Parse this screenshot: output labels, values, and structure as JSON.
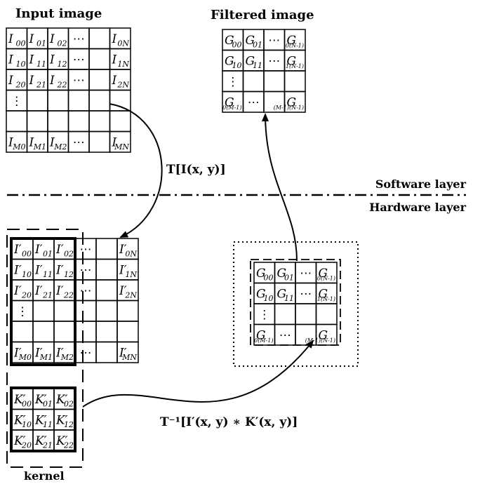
{
  "titles": {
    "input": "Input image",
    "filtered": "Filtered image"
  },
  "layers": {
    "software": "Software layer",
    "hardware": "Hardware layer"
  },
  "kernel_label": "kernel",
  "formulas": {
    "forward": "T[I(x, y)]",
    "inverse": "T⁻¹[I′(x, y) ∗ K′(x, y)]"
  },
  "input_grid": {
    "base": "I",
    "rows": [
      [
        "00",
        "01",
        "02",
        "⋯",
        "",
        "0N"
      ],
      [
        "10",
        "11",
        "12",
        "⋯",
        "",
        "1N"
      ],
      [
        "20",
        "21",
        "22",
        "⋯",
        "",
        "2N"
      ],
      [
        "⋮",
        "",
        "",
        "",
        "",
        ""
      ],
      [
        "",
        "",
        "",
        "",
        "",
        ""
      ],
      [
        "M0",
        "M1",
        "M2",
        "⋯",
        "",
        "MN"
      ]
    ]
  },
  "transformed_grid": {
    "base": "I′",
    "rows": [
      [
        "00",
        "01",
        "02",
        "⋯",
        "",
        "0N"
      ],
      [
        "10",
        "11",
        "12",
        "⋯",
        "",
        "1N"
      ],
      [
        "20",
        "21",
        "22",
        "⋯",
        "",
        "2N"
      ],
      [
        "⋮",
        "",
        "",
        "",
        "",
        ""
      ],
      [
        "",
        "",
        "",
        "",
        "",
        ""
      ],
      [
        "M0",
        "M1",
        "M2",
        "⋯",
        "",
        "MN"
      ]
    ]
  },
  "kernel_grid": {
    "base": "K′",
    "rows": [
      [
        "00",
        "01",
        "02"
      ],
      [
        "10",
        "11",
        "12"
      ],
      [
        "20",
        "21",
        "22"
      ]
    ]
  },
  "output_grid": {
    "base": "G",
    "rows": [
      [
        "00",
        "01",
        "⋯",
        "0(N-1)"
      ],
      [
        "10",
        "11",
        "⋯",
        "1(N-1)"
      ],
      [
        "⋮",
        "",
        "",
        ""
      ],
      [
        "0(M-1)",
        "⋯",
        "",
        "(M-1)(N-1)"
      ]
    ]
  }
}
